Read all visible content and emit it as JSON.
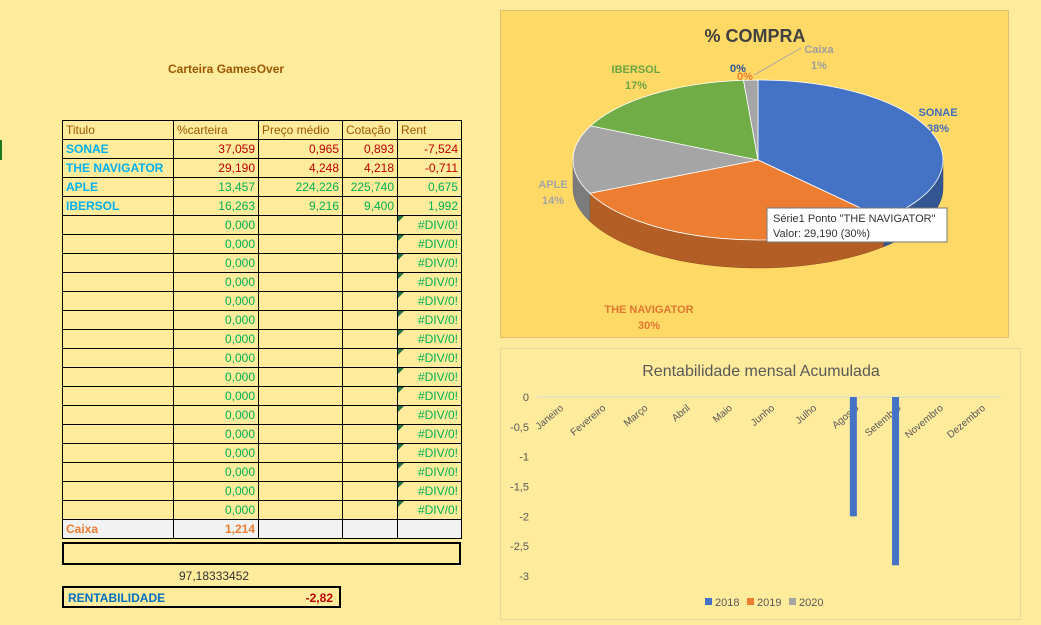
{
  "sheet": {
    "title": "Carteira GamesOver"
  },
  "table": {
    "headers": [
      "Titulo",
      "%carteira",
      "Preço médio",
      "Cotação",
      "Rent"
    ],
    "rows": [
      {
        "titulo": "SONAE",
        "carteira": "37,059",
        "preco": "0,965",
        "cotacao": "0,893",
        "rent": "-7,524",
        "color": "#C00000",
        "name_color": "#00B0F0"
      },
      {
        "titulo": "THE NAVIGATOR",
        "carteira": "29,190",
        "preco": "4,248",
        "cotacao": "4,218",
        "rent": "-0,711",
        "color": "#C00000",
        "name_color": "#00B0F0"
      },
      {
        "titulo": "APLE",
        "carteira": "13,457",
        "preco": "224,226",
        "cotacao": "225,740",
        "rent": "0,675",
        "color": "#00B050",
        "name_color": "#00B0F0"
      },
      {
        "titulo": "IBERSOL",
        "carteira": "16,263",
        "preco": "9,216",
        "cotacao": "9,400",
        "rent": "1,992",
        "color": "#00B050",
        "name_color": "#00B0F0"
      }
    ],
    "empty_rows": {
      "carteira": "0,000",
      "rent": "#DIV/0!",
      "color": "#00B050",
      "count": 16
    },
    "caixa": {
      "label": "Caixa",
      "value": "1,214",
      "color": "#ED7D31"
    },
    "total": "97,18333452",
    "rentabilidade": {
      "label": "RENTABILIDADE",
      "value": "-2,82"
    }
  },
  "chart_data": [
    {
      "type": "pie",
      "title": "% COMPRA",
      "slices": [
        {
          "label": "SONAE",
          "value": 37.059,
          "pct": "38%",
          "color": "#4472C4"
        },
        {
          "label": "THE NAVIGATOR",
          "value": 29.19,
          "pct": "30%",
          "color": "#ED7D31"
        },
        {
          "label": "APLE",
          "value": 13.457,
          "pct": "14%",
          "color": "#A5A5A5"
        },
        {
          "label": "IBERSOL",
          "value": 16.263,
          "pct": "17%",
          "color": "#70AD47"
        },
        {
          "label": "",
          "value": 0,
          "pct": "0%",
          "color": "#4472C4"
        },
        {
          "label": "",
          "value": 0,
          "pct": "0%",
          "color": "#ED7D31"
        },
        {
          "label": "Caixa",
          "value": 1.214,
          "pct": "1%",
          "color": "#A5A5A5"
        }
      ],
      "tooltip": {
        "line1": "Série1 Ponto \"THE NAVIGATOR\"",
        "line2": "Valor: 29,190 (30%)"
      }
    },
    {
      "type": "bar",
      "title": "Rentabilidade mensal Acumulada",
      "categories": [
        "Janeiro",
        "Fevereiro",
        "Março",
        "Abril",
        "Maio",
        "Junho",
        "Julho",
        "Agosto",
        "Setembro",
        "Novembro",
        "Dezembro"
      ],
      "series": [
        {
          "name": "2018",
          "color": "#4472C4",
          "values": [
            null,
            null,
            null,
            null,
            null,
            null,
            null,
            -2.0,
            -2.82,
            null,
            null
          ]
        },
        {
          "name": "2019",
          "color": "#ED7D31",
          "values": [
            null,
            null,
            null,
            null,
            null,
            null,
            null,
            null,
            null,
            null,
            null
          ]
        },
        {
          "name": "2020",
          "color": "#A5A5A5",
          "values": [
            null,
            null,
            null,
            null,
            null,
            null,
            null,
            null,
            null,
            null,
            null
          ]
        }
      ],
      "ylim": [
        -3,
        0
      ],
      "yticks": [
        "0",
        "-0,5",
        "-1",
        "-1,5",
        "-2",
        "-2,5",
        "-3"
      ],
      "ytick_values": [
        0,
        -0.5,
        -1,
        -1.5,
        -2,
        -2.5,
        -3
      ],
      "legend_position": "bottom",
      "grid": false
    }
  ]
}
